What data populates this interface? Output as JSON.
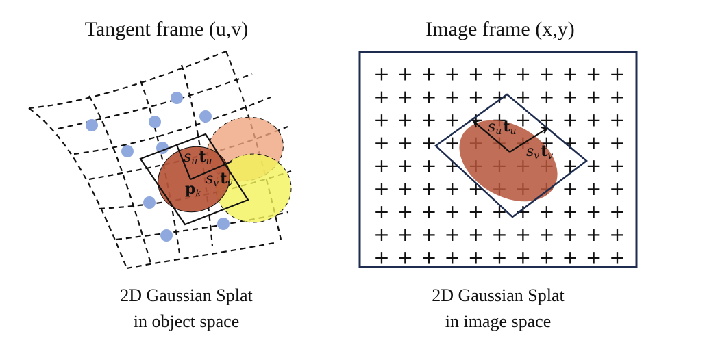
{
  "left_panel": {
    "title": "Tangent frame (u,v)",
    "caption_line1": "2D Gaussian Splat",
    "caption_line2": "in object space",
    "labels": {
      "su_base": "s",
      "su_sub": "u",
      "tu_base": "t",
      "tu_sub": "u",
      "sv_base": "s",
      "sv_sub": "v",
      "tv_base": "t",
      "tv_sub": "v",
      "pk_base": "p",
      "pk_sub": "k"
    }
  },
  "right_panel": {
    "title": "Image frame (x,y)",
    "caption_line1": "2D Gaussian Splat",
    "caption_line2": "in image space",
    "labels": {
      "su_base": "s",
      "su_sub": "u",
      "tu_base": "t",
      "tu_sub": "u",
      "sv_base": "s",
      "sv_sub": "v",
      "tv_base": "t",
      "tv_sub": "v"
    },
    "grid_glyph": "+",
    "grid_cols": 11,
    "grid_rows": 9
  },
  "colors": {
    "point": "#8fa9df",
    "splat_main": "#b5553a",
    "splat_peach": "#eda57e",
    "splat_yellow": "#f4f35a",
    "frame_border": "#1e2d4f"
  }
}
